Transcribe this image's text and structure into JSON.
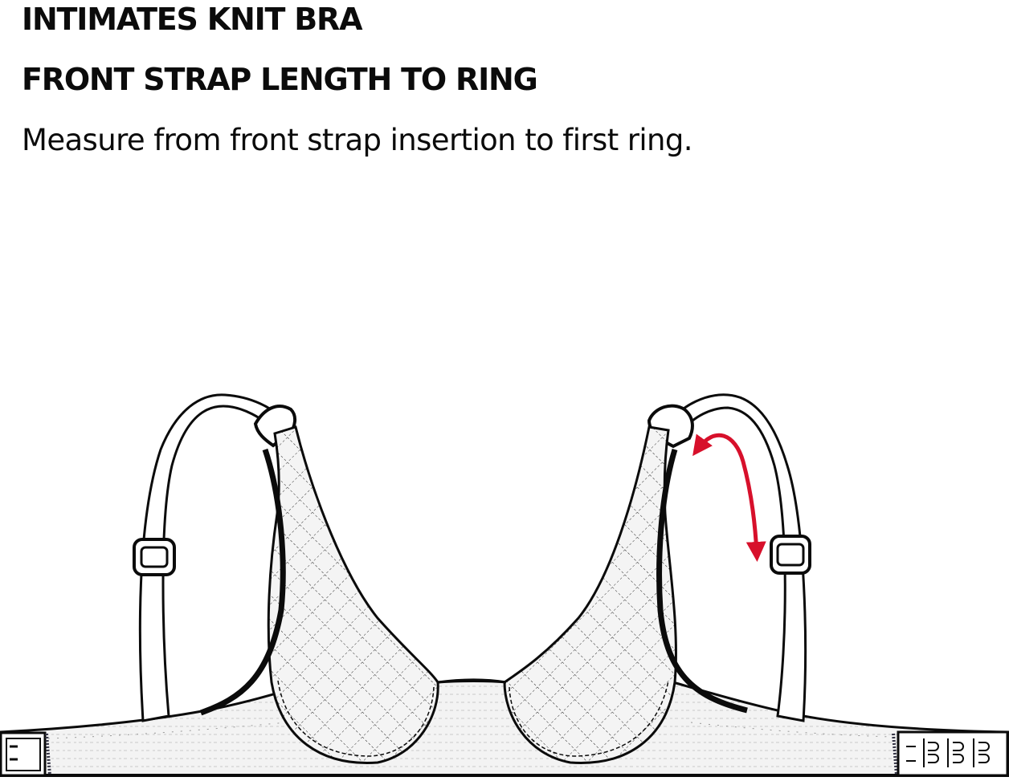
{
  "garment_name": "INTIMATES KNIT BRA",
  "measurement_title": "FRONT STRAP LENGTH TO RING",
  "instruction": "Measure from front strap insertion to first ring.",
  "colors": {
    "ink": "#0b0b0b",
    "measure_arrow": "#d7102b",
    "fabric_fill": "#f2f2f2",
    "background": "#ffffff"
  },
  "icons": [
    "bra-illustration",
    "measurement-arrow-icon",
    "hook-and-eye-closure",
    "strap-adjuster-slider",
    "strap-ring"
  ]
}
